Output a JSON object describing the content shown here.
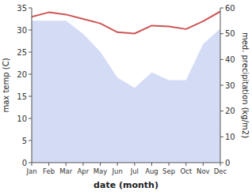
{
  "chart_data": {
    "type": "line",
    "categories": [
      "Jan",
      "Feb",
      "Mar",
      "Apr",
      "May",
      "Jun",
      "Jul",
      "Aug",
      "Sep",
      "Oct",
      "Nov",
      "Dec"
    ],
    "series": [
      {
        "type": "area",
        "axis": "y2",
        "color": "#b8c4ee",
        "values": [
          55.0,
          55.0,
          55.0,
          50.0,
          43.0,
          33.0,
          29.0,
          35.0,
          32.0,
          32.0,
          46.0,
          52.0
        ]
      },
      {
        "type": "line",
        "color": "#cd5555",
        "values": [
          33.0,
          34.0,
          33.5,
          32.5,
          31.5,
          29.5,
          29.2,
          31.0,
          30.8,
          30.2,
          32.0,
          34.2
        ]
      }
    ],
    "xlabel": "date (month)",
    "ylabel": "max temp (C)",
    "y2label": "med. precipitation (kg/m2)",
    "ylim": [
      0,
      35
    ],
    "yticks": [
      0,
      5,
      10,
      15,
      20,
      25,
      30,
      35
    ],
    "y2lim": [
      0,
      60
    ],
    "y2ticks": [
      0,
      10,
      20,
      30,
      40,
      50,
      60
    ],
    "grid": false
  }
}
